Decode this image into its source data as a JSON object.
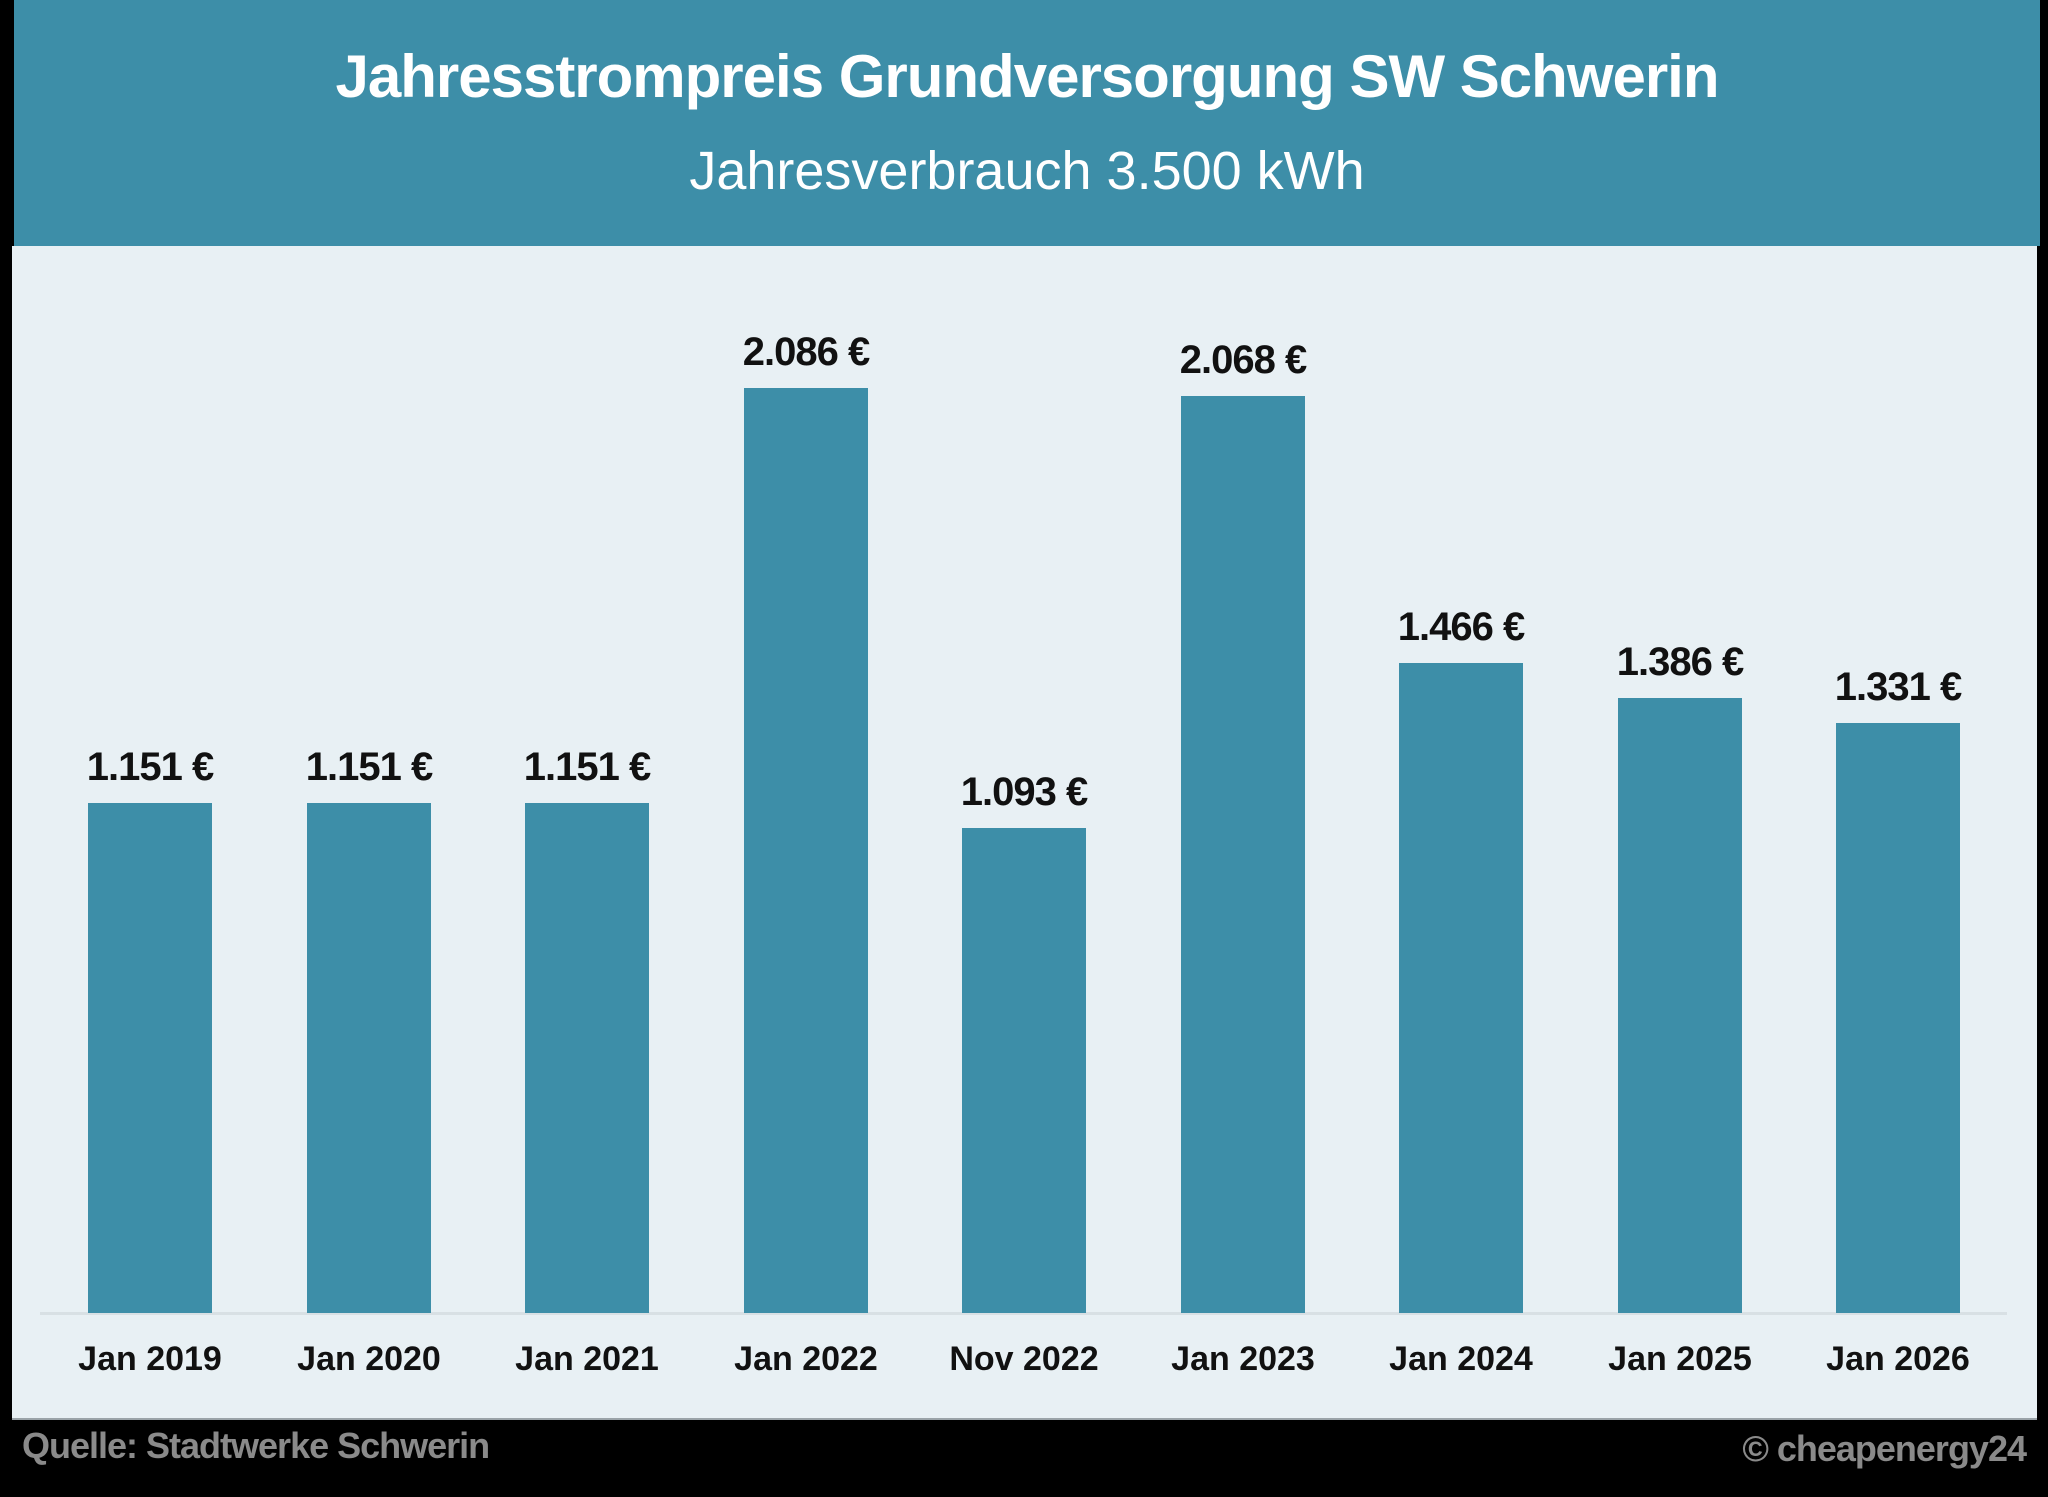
{
  "header": {
    "title": "Jahresstrompreis Grundversorgung SW Schwerin",
    "subtitle": "Jahresverbrauch 3.500 kWh"
  },
  "footer": {
    "source": "Quelle: Stadtwerke Schwerin",
    "copyright": "© cheapenergy24"
  },
  "colors": {
    "accent": "#3d8ea8",
    "panel": "#e8f0f4",
    "background": "#000000",
    "footer_text": "#8a8a8a"
  },
  "chart_data": {
    "type": "bar",
    "title": "Jahresstrompreis Grundversorgung SW Schwerin",
    "subtitle": "Jahresverbrauch 3.500 kWh",
    "xlabel": "",
    "ylabel": "",
    "unit": "€",
    "categories": [
      "Jan 2019",
      "Jan 2020",
      "Jan 2021",
      "Jan 2022",
      "Nov 2022",
      "Jan 2023",
      "Jan 2024",
      "Jan 2025",
      "Jan 2026"
    ],
    "values": [
      1151,
      1151,
      1151,
      2086,
      1093,
      2068,
      1466,
      1386,
      1331
    ],
    "labels": [
      "1.151 €",
      "1.151 €",
      "1.151 €",
      "2.086 €",
      "1.093 €",
      "2.068 €",
      "1.466 €",
      "1.386 €",
      "1.331 €"
    ],
    "ylim": [
      0,
      2300
    ],
    "grid": false,
    "legend": "none",
    "source": "Quelle: Stadtwerke Schwerin"
  }
}
